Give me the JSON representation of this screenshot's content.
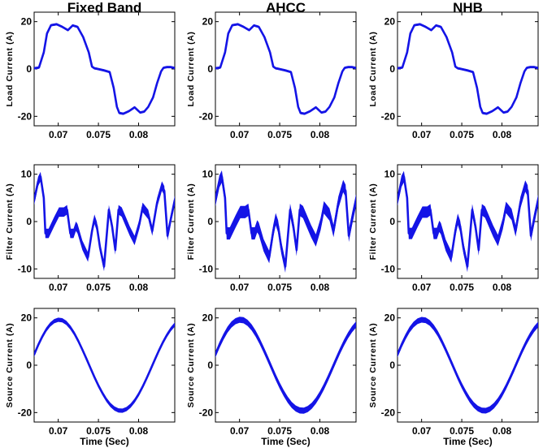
{
  "figure": {
    "columns": [
      "Fixed Band",
      "AHCC",
      "NHB"
    ],
    "xlabel": "Time (Sec)",
    "colors": {
      "trace": "#1414e6",
      "axes": "#000000",
      "background": "#ffffff"
    }
  },
  "chart_data": [
    {
      "type": "line",
      "title": "Fixed Band",
      "ylabel": "Load Current (A)",
      "xlabel": "",
      "xlim": [
        0.067,
        0.0845
      ],
      "ylim": [
        -24,
        24
      ],
      "xticks": [
        "0.07",
        "0.075",
        "0.08"
      ],
      "yticks": [
        "-20",
        "0",
        "20"
      ],
      "series": [
        {
          "x": [
            0.067,
            0.0676,
            0.0682,
            0.0686,
            0.0691,
            0.0698,
            0.0705,
            0.0712,
            0.0718,
            0.0724,
            0.0731,
            0.0738,
            0.0742,
            0.0745,
            0.0748,
            0.0757,
            0.0764,
            0.0769,
            0.0773,
            0.0776,
            0.0781,
            0.0788,
            0.0795,
            0.0802,
            0.0807,
            0.0812,
            0.0818,
            0.0823,
            0.0828,
            0.0831,
            0.0835,
            0.084,
            0.0845
          ],
          "y": [
            0.3,
            0.6,
            7,
            15,
            18.5,
            18.9,
            17.8,
            16.4,
            18.4,
            17.8,
            13.5,
            7,
            1,
            0.3,
            0.1,
            -0.6,
            -1.3,
            -8,
            -16,
            -18.6,
            -18.9,
            -17.8,
            -16.2,
            -18.4,
            -18,
            -16,
            -12,
            -6,
            -1,
            0.5,
            0.8,
            0.8,
            0.4
          ],
          "band": 0.5
        }
      ]
    },
    {
      "type": "line",
      "title": "AHCC",
      "ylabel": "Load Current (A)",
      "xlabel": "",
      "xlim": [
        0.067,
        0.0845
      ],
      "ylim": [
        -24,
        24
      ],
      "xticks": [
        "0.07",
        "0.075",
        "0.08"
      ],
      "yticks": [
        "-20",
        "0",
        "20"
      ],
      "series": [
        {
          "x": [
            0.067,
            0.0676,
            0.0682,
            0.0686,
            0.0691,
            0.0698,
            0.0705,
            0.0712,
            0.0718,
            0.0724,
            0.0731,
            0.0738,
            0.0742,
            0.0745,
            0.0748,
            0.0757,
            0.0764,
            0.0769,
            0.0773,
            0.0776,
            0.0781,
            0.0788,
            0.0795,
            0.0802,
            0.0807,
            0.0812,
            0.0818,
            0.0823,
            0.0828,
            0.0831,
            0.0835,
            0.084,
            0.0845
          ],
          "y": [
            0.3,
            0.6,
            7,
            15,
            18.5,
            18.9,
            17.8,
            16.4,
            18.4,
            17.8,
            13.5,
            7,
            1,
            0.3,
            0.1,
            -0.6,
            -1.3,
            -8,
            -16,
            -18.6,
            -18.9,
            -17.8,
            -16.2,
            -18.4,
            -18,
            -16,
            -12,
            -6,
            -1,
            0.5,
            0.8,
            0.8,
            0.4
          ],
          "band": 0.5
        }
      ]
    },
    {
      "type": "line",
      "title": "NHB",
      "ylabel": "Load Current (A)",
      "xlabel": "",
      "xlim": [
        0.067,
        0.0845
      ],
      "ylim": [
        -24,
        24
      ],
      "xticks": [
        "0.07",
        "0.075",
        "0.08"
      ],
      "yticks": [
        "-20",
        "0",
        "20"
      ],
      "series": [
        {
          "x": [
            0.067,
            0.0676,
            0.0682,
            0.0686,
            0.0691,
            0.0698,
            0.0705,
            0.0712,
            0.0718,
            0.0724,
            0.0731,
            0.0738,
            0.0742,
            0.0745,
            0.0748,
            0.0757,
            0.0764,
            0.0769,
            0.0773,
            0.0776,
            0.0781,
            0.0788,
            0.0795,
            0.0802,
            0.0807,
            0.0812,
            0.0818,
            0.0823,
            0.0828,
            0.0831,
            0.0835,
            0.084,
            0.0845
          ],
          "y": [
            0.3,
            0.6,
            7,
            15,
            18.5,
            18.9,
            17.8,
            16.4,
            18.4,
            17.8,
            13.5,
            7,
            1,
            0.3,
            0.1,
            -0.6,
            -1.3,
            -8,
            -16,
            -18.6,
            -18.9,
            -17.8,
            -16.2,
            -18.4,
            -18,
            -16,
            -12,
            -6,
            -1,
            0.5,
            0.8,
            0.8,
            0.4
          ],
          "band": 0.5
        }
      ]
    },
    {
      "type": "line",
      "title": "",
      "ylabel": "Filter Current (A)",
      "xlabel": "",
      "xlim": [
        0.067,
        0.0845
      ],
      "ylim": [
        -12,
        12
      ],
      "xticks": [
        "0.07",
        "0.075",
        "0.08"
      ],
      "yticks": [
        "-10",
        "0",
        "10"
      ],
      "series": [
        {
          "x": [
            0.067,
            0.0675,
            0.0678,
            0.0682,
            0.0684,
            0.0688,
            0.0695,
            0.0701,
            0.0707,
            0.0711,
            0.0715,
            0.0719,
            0.0722,
            0.0724,
            0.073,
            0.0737,
            0.0742,
            0.0745,
            0.0748,
            0.0752,
            0.0757,
            0.0763,
            0.0767,
            0.0771,
            0.0775,
            0.0779,
            0.0784,
            0.0789,
            0.0795,
            0.0801,
            0.0805,
            0.0812,
            0.0817,
            0.0823,
            0.0829,
            0.0832,
            0.0836,
            0.084,
            0.0845
          ],
          "y": [
            4.5,
            8.5,
            9.5,
            5,
            -2.5,
            -2.5,
            0,
            2,
            2,
            2.5,
            -2.5,
            -2.5,
            -1,
            -1.5,
            -5,
            -7.5,
            -2,
            0.5,
            -1,
            -5.5,
            -9.5,
            2.5,
            -1,
            -6,
            2.5,
            2,
            0,
            -2,
            -4,
            -0.5,
            3,
            1.5,
            -2,
            4,
            7.5,
            6.5,
            -3,
            0.5,
            4.5
          ],
          "band": 1.0
        }
      ]
    },
    {
      "type": "line",
      "title": "",
      "ylabel": "Filter Current (A)",
      "xlabel": "",
      "xlim": [
        0.067,
        0.0845
      ],
      "ylim": [
        -12,
        12
      ],
      "xticks": [
        "0.07",
        "0.075",
        "0.08"
      ],
      "yticks": [
        "-10",
        "0",
        "10"
      ],
      "series": [
        {
          "x": [
            0.067,
            0.0675,
            0.0678,
            0.0682,
            0.0684,
            0.0688,
            0.0695,
            0.0701,
            0.0707,
            0.0711,
            0.0715,
            0.0719,
            0.0722,
            0.0724,
            0.073,
            0.0737,
            0.0742,
            0.0745,
            0.0748,
            0.0752,
            0.0757,
            0.0763,
            0.0767,
            0.0771,
            0.0775,
            0.0779,
            0.0784,
            0.0789,
            0.0795,
            0.0801,
            0.0805,
            0.0812,
            0.0817,
            0.0823,
            0.0829,
            0.0832,
            0.0836,
            0.084,
            0.0845
          ],
          "y": [
            4.5,
            8.5,
            9.5,
            5,
            -2.5,
            -2.5,
            0,
            2,
            2,
            2.5,
            -2.5,
            -2.5,
            -1,
            -1.5,
            -5,
            -7.5,
            -2,
            0.5,
            -1,
            -5.5,
            -9.5,
            2.5,
            -1,
            -6,
            2.5,
            2,
            0,
            -2,
            -4,
            -0.5,
            3,
            1.5,
            -2,
            4,
            7.5,
            6.5,
            -3,
            0.5,
            4.5
          ],
          "band": 1.3
        }
      ]
    },
    {
      "type": "line",
      "title": "",
      "ylabel": "Filter Current (A)",
      "xlabel": "",
      "xlim": [
        0.067,
        0.0845
      ],
      "ylim": [
        -12,
        12
      ],
      "xticks": [
        "0.07",
        "0.075",
        "0.08"
      ],
      "yticks": [
        "-10",
        "0",
        "10"
      ],
      "series": [
        {
          "x": [
            0.067,
            0.0675,
            0.0678,
            0.0682,
            0.0684,
            0.0688,
            0.0695,
            0.0701,
            0.0707,
            0.0711,
            0.0715,
            0.0719,
            0.0722,
            0.0724,
            0.073,
            0.0737,
            0.0742,
            0.0745,
            0.0748,
            0.0752,
            0.0757,
            0.0763,
            0.0767,
            0.0771,
            0.0775,
            0.0779,
            0.0784,
            0.0789,
            0.0795,
            0.0801,
            0.0805,
            0.0812,
            0.0817,
            0.0823,
            0.0829,
            0.0832,
            0.0836,
            0.084,
            0.0845
          ],
          "y": [
            4.5,
            8.5,
            9.5,
            5,
            -2.5,
            -2.5,
            0,
            2,
            2,
            2.5,
            -2.5,
            -2.5,
            -1,
            -1.5,
            -5,
            -7.5,
            -2,
            0.5,
            -1,
            -5.5,
            -9.5,
            2.5,
            -1,
            -6,
            2.5,
            2,
            0,
            -2,
            -4,
            -0.5,
            3,
            1.5,
            -2,
            4,
            7.5,
            6.5,
            -3,
            0.5,
            4.5
          ],
          "band": 1.2
        }
      ]
    },
    {
      "type": "line",
      "title": "",
      "ylabel": "Source Current (A)",
      "xlabel": "Time (Sec)",
      "xlim": [
        0.067,
        0.0845
      ],
      "ylim": [
        -24,
        24
      ],
      "xticks": [
        "0.07",
        "0.075",
        "0.08"
      ],
      "yticks": [
        "-20",
        "0",
        "20"
      ],
      "series": [
        {
          "x": [
            0.067,
            0.0675,
            0.068,
            0.0685,
            0.069,
            0.0695,
            0.07,
            0.0705,
            0.071,
            0.0715,
            0.072,
            0.0725,
            0.073,
            0.0735,
            0.074,
            0.0745,
            0.075,
            0.0755,
            0.076,
            0.0765,
            0.077,
            0.0775,
            0.078,
            0.0785,
            0.079,
            0.0795,
            0.08,
            0.0805,
            0.081,
            0.0815,
            0.082,
            0.0825,
            0.083,
            0.0835,
            0.084,
            0.0845
          ],
          "y": [
            4.5,
            8.5,
            12,
            15,
            17.2,
            18.6,
            19.2,
            19,
            17.9,
            16,
            13.4,
            10.2,
            6.6,
            2.8,
            -1.1,
            -5,
            -8.6,
            -11.8,
            -14.6,
            -16.8,
            -18.3,
            -19.1,
            -19.2,
            -18.5,
            -17.1,
            -15,
            -12.3,
            -9.1,
            -5.5,
            -1.7,
            2.2,
            6,
            9.5,
            12.6,
            15.2,
            17.2
          ],
          "band": 0.9
        }
      ]
    },
    {
      "type": "line",
      "title": "",
      "ylabel": "Source Current (A)",
      "xlabel": "Time (Sec)",
      "xlim": [
        0.067,
        0.0845
      ],
      "ylim": [
        -24,
        24
      ],
      "xticks": [
        "0.07",
        "0.075",
        "0.08"
      ],
      "yticks": [
        "-20",
        "0",
        "20"
      ],
      "series": [
        {
          "x": [
            0.067,
            0.0675,
            0.068,
            0.0685,
            0.069,
            0.0695,
            0.07,
            0.0705,
            0.071,
            0.0715,
            0.072,
            0.0725,
            0.073,
            0.0735,
            0.074,
            0.0745,
            0.075,
            0.0755,
            0.076,
            0.0765,
            0.077,
            0.0775,
            0.078,
            0.0785,
            0.079,
            0.0795,
            0.08,
            0.0805,
            0.081,
            0.0815,
            0.082,
            0.0825,
            0.083,
            0.0835,
            0.084,
            0.0845
          ],
          "y": [
            4.5,
            8.5,
            12,
            15,
            17.2,
            18.6,
            19.2,
            19,
            17.9,
            16,
            13.4,
            10.2,
            6.6,
            2.8,
            -1.1,
            -5,
            -8.6,
            -11.8,
            -14.6,
            -16.8,
            -18.3,
            -19.1,
            -19.2,
            -18.5,
            -17.1,
            -15,
            -12.3,
            -9.1,
            -5.5,
            -1.7,
            2.2,
            6,
            9.5,
            12.6,
            15.2,
            17.2
          ],
          "band": 1.3
        }
      ]
    },
    {
      "type": "line",
      "title": "",
      "ylabel": "Source Current (A)",
      "xlabel": "Time (Sec)",
      "xlim": [
        0.067,
        0.0845
      ],
      "ylim": [
        -24,
        24
      ],
      "xticks": [
        "0.07",
        "0.075",
        "0.08"
      ],
      "yticks": [
        "-20",
        "0",
        "20"
      ],
      "series": [
        {
          "x": [
            0.067,
            0.0675,
            0.068,
            0.0685,
            0.069,
            0.0695,
            0.07,
            0.0705,
            0.071,
            0.0715,
            0.072,
            0.0725,
            0.073,
            0.0735,
            0.074,
            0.0745,
            0.075,
            0.0755,
            0.076,
            0.0765,
            0.077,
            0.0775,
            0.078,
            0.0785,
            0.079,
            0.0795,
            0.08,
            0.0805,
            0.081,
            0.0815,
            0.082,
            0.0825,
            0.083,
            0.0835,
            0.084,
            0.0845
          ],
          "y": [
            4.5,
            8.5,
            12,
            15,
            17.2,
            18.6,
            19.2,
            19,
            17.9,
            16,
            13.4,
            10.2,
            6.6,
            2.8,
            -1.1,
            -5,
            -8.6,
            -11.8,
            -14.6,
            -16.8,
            -18.3,
            -19.1,
            -19.2,
            -18.5,
            -17.1,
            -15,
            -12.3,
            -9.1,
            -5.5,
            -1.7,
            2.2,
            6,
            9.5,
            12.6,
            15.2,
            17.2
          ],
          "band": 1.2
        }
      ]
    }
  ]
}
